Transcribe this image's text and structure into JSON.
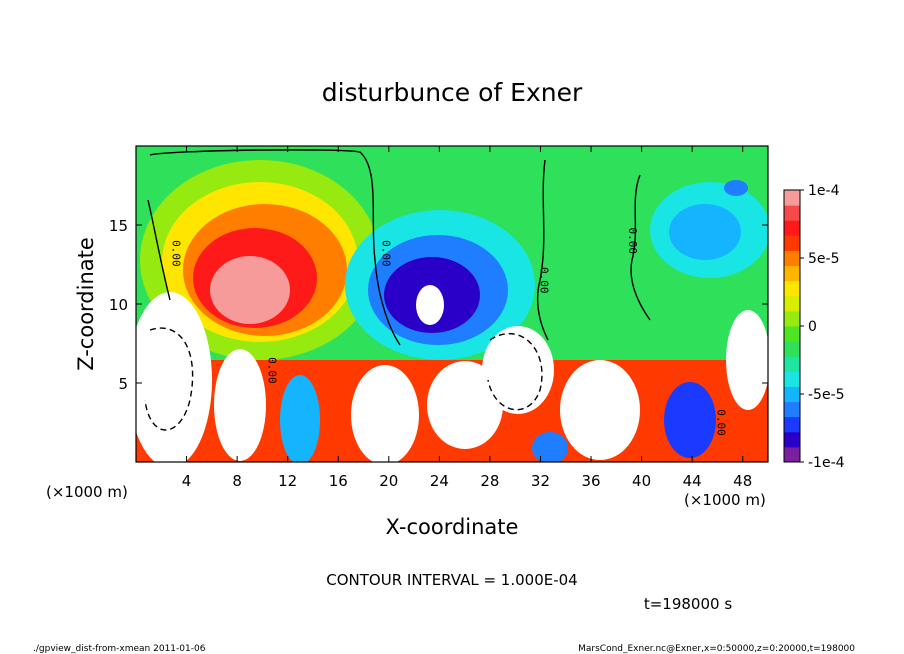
{
  "chart_data": {
    "type": "heatmap",
    "title": "disturbunce of Exner",
    "xlabel": "X-coordinate",
    "ylabel": "Z-coordinate",
    "x_unit_left": "(×1000 m)",
    "x_unit_right": "(×1000 m)",
    "xlim": [
      0,
      50
    ],
    "ylim": [
      0,
      20
    ],
    "x_ticks": [
      "4",
      "8",
      "12",
      "16",
      "20",
      "24",
      "28",
      "32",
      "36",
      "40",
      "44",
      "48"
    ],
    "y_ticks": [
      "5",
      "10",
      "15"
    ],
    "x_tick_values": [
      4,
      8,
      12,
      16,
      20,
      24,
      28,
      32,
      36,
      40,
      44,
      48
    ],
    "y_tick_values": [
      5,
      10,
      15
    ],
    "colorbar": {
      "range": [
        -0.0001,
        0.0001
      ],
      "labels": [
        "1e-4",
        "5e-5",
        "0",
        "-5e-5",
        "-1e-4"
      ],
      "label_values": [
        0.0001,
        5e-05,
        0,
        -5e-05,
        -0.0001
      ],
      "colors": [
        "#7a1fa2",
        "#2a00c8",
        "#1a3aff",
        "#1f7dff",
        "#15b4ff",
        "#19e5e5",
        "#1ee6a0",
        "#2ee05a",
        "#4ee623",
        "#96ea10",
        "#d8ee00",
        "#ffe600",
        "#ffb400",
        "#ff7e00",
        "#ff3a00",
        "#ff1a1a",
        "#f44a4a",
        "#f79a9a"
      ]
    },
    "contour_labels": [
      "0.00",
      "0.00",
      "0.00",
      "0.00",
      "0.00",
      "0.00"
    ],
    "contour_interval_text": "CONTOUR INTERVAL = 1.000E-04",
    "time_text": "t=198000 s",
    "zero_contour_x_positions": [
      3,
      19,
      32,
      39
    ],
    "features": [
      {
        "x": 9.5,
        "z": 12,
        "value": 7e-05
      },
      {
        "x": 23.5,
        "z": 12,
        "value": -9e-05
      },
      {
        "x": 45,
        "z": 15,
        "value": -4e-05
      },
      {
        "x": 2,
        "z": 6,
        "value": 0.00013
      },
      {
        "x": 29,
        "z": 6,
        "value": 0.00015
      }
    ]
  },
  "footer": {
    "left": "./gpview_dist-from-xmean  2011-01-06",
    "right": "MarsCond_Exner.nc@Exner,x=0:50000,z=0:20000,t=198000"
  }
}
